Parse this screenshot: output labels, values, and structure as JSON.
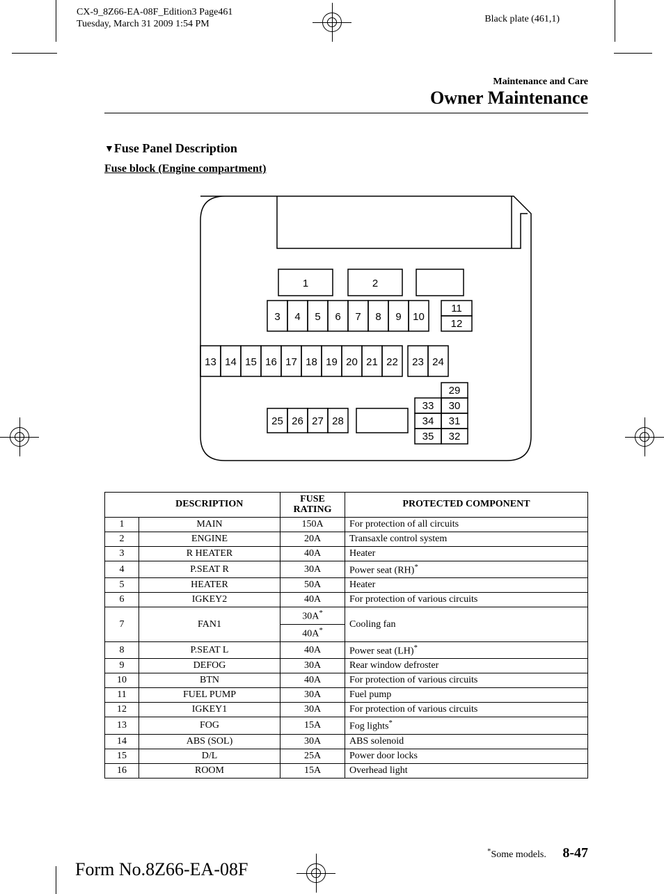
{
  "meta": {
    "line1": "CX-9_8Z66-EA-08F_Edition3 Page461",
    "line2": "Tuesday, March 31 2009 1:54 PM",
    "plate": "Black plate (461,1)"
  },
  "header": {
    "small": "Maintenance and Care",
    "large": "Owner Maintenance"
  },
  "section": {
    "title": "Fuse Panel Description",
    "subtitle": "Fuse block (Engine compartment)"
  },
  "table": {
    "headers": {
      "desc": "DESCRIPTION",
      "rating": "FUSE RATING",
      "component": "PROTECTED COMPONENT"
    },
    "rows": [
      {
        "n": "1",
        "desc": "MAIN",
        "rating": "150A",
        "comp": "For protection of all circuits"
      },
      {
        "n": "2",
        "desc": "ENGINE",
        "rating": "20A",
        "comp": "Transaxle control system"
      },
      {
        "n": "3",
        "desc": "R HEATER",
        "rating": "40A",
        "comp": "Heater"
      },
      {
        "n": "4",
        "desc": "P.SEAT R",
        "rating": "30A",
        "comp": "Power seat (RH)",
        "comp_star": true
      },
      {
        "n": "5",
        "desc": "HEATER",
        "rating": "50A",
        "comp": "Heater"
      },
      {
        "n": "6",
        "desc": "IGKEY2",
        "rating": "40A",
        "comp": "For protection of various circuits"
      },
      {
        "n": "7",
        "desc": "FAN1",
        "rating_split": [
          "30A",
          "40A"
        ],
        "rating_star": true,
        "comp": "Cooling fan"
      },
      {
        "n": "8",
        "desc": "P.SEAT L",
        "rating": "40A",
        "comp": "Power seat (LH)",
        "comp_star": true
      },
      {
        "n": "9",
        "desc": "DEFOG",
        "rating": "30A",
        "comp": "Rear window defroster"
      },
      {
        "n": "10",
        "desc": "BTN",
        "rating": "40A",
        "comp": "For protection of various circuits"
      },
      {
        "n": "11",
        "desc": "FUEL PUMP",
        "rating": "30A",
        "comp": "Fuel pump"
      },
      {
        "n": "12",
        "desc": "IGKEY1",
        "rating": "30A",
        "comp": "For protection of various circuits"
      },
      {
        "n": "13",
        "desc": "FOG",
        "rating": "15A",
        "comp": "Fog lights",
        "comp_star": true
      },
      {
        "n": "14",
        "desc": "ABS (SOL)",
        "rating": "30A",
        "comp": "ABS solenoid"
      },
      {
        "n": "15",
        "desc": "D/L",
        "rating": "25A",
        "comp": "Power door locks"
      },
      {
        "n": "16",
        "desc": "ROOM",
        "rating": "15A",
        "comp": "Overhead light"
      }
    ]
  },
  "footer": {
    "note": "Some models.",
    "page": "8-47",
    "form": "Form No.8Z66-EA-08F"
  },
  "diagram": {
    "font_family": "Arial, Helvetica, sans-serif",
    "font_size": 15,
    "stroke": "#000000",
    "fill": "#ffffff"
  }
}
